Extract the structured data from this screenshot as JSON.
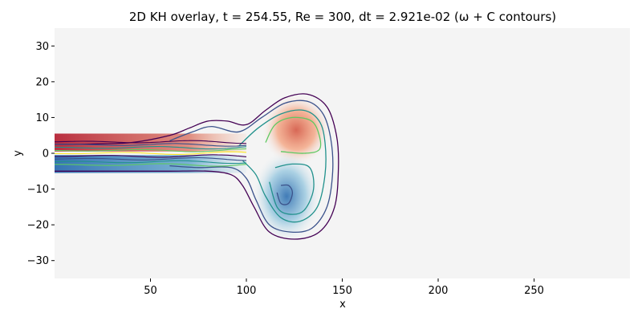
{
  "chart_data": {
    "type": "heatmap",
    "title": "2D KH overlay, t =  254.55, Re = 300, dt = 2.921e-02 (ω + C contours)",
    "xlabel": "x",
    "ylabel": "y",
    "xlim": [
      0,
      300
    ],
    "ylim": [
      -35,
      35
    ],
    "xticks": [
      50,
      100,
      150,
      200,
      250
    ],
    "yticks": [
      -30,
      -20,
      -10,
      0,
      10,
      20,
      30
    ],
    "xtick_labels": [
      "50",
      "100",
      "150",
      "200",
      "250"
    ],
    "ytick_labels": [
      "−30",
      "−20",
      "−10",
      "0",
      "10",
      "20",
      "30"
    ],
    "background_color": "#f4f4f4",
    "colormap": "RdBu_r",
    "vortices": [
      {
        "name": "upper",
        "sign": "positive",
        "cx": 126,
        "cy": 6.5,
        "color": "#d6604d"
      },
      {
        "name": "lower",
        "sign": "negative",
        "cx": 121,
        "cy": -12,
        "color": "#4393c3"
      }
    ],
    "shear_layer": {
      "x_start": 0,
      "x_end": 100,
      "upper_y": 4,
      "lower_y": -4
    },
    "contour_colors": [
      "#440154",
      "#3b528b",
      "#21918c",
      "#5ec962",
      "#fde725"
    ],
    "contours": [
      {
        "level": "outer",
        "color": "#440154",
        "points": [
          [
            0,
            2.5
          ],
          [
            20,
            2.6
          ],
          [
            40,
            3
          ],
          [
            60,
            5
          ],
          [
            70,
            7
          ],
          [
            80,
            9
          ],
          [
            90,
            9
          ],
          [
            100,
            8
          ],
          [
            110,
            12
          ],
          [
            120,
            15.5
          ],
          [
            132,
            16.5
          ],
          [
            142,
            13
          ],
          [
            147,
            5
          ],
          [
            148,
            -4
          ],
          [
            146,
            -15
          ],
          [
            138,
            -22
          ],
          [
            125,
            -24
          ],
          [
            112,
            -22
          ],
          [
            104,
            -15
          ],
          [
            98,
            -9
          ],
          [
            92,
            -6
          ],
          [
            80,
            -5
          ],
          [
            60,
            -5
          ],
          [
            40,
            -5
          ],
          [
            20,
            -5
          ],
          [
            0,
            -5
          ]
        ]
      },
      {
        "level": "mid",
        "color": "#3b528b",
        "points": [
          [
            60,
            3.5
          ],
          [
            72,
            6
          ],
          [
            82,
            7.5
          ],
          [
            96,
            6
          ],
          [
            108,
            10
          ],
          [
            120,
            14
          ],
          [
            132,
            14.5
          ],
          [
            140,
            11
          ],
          [
            144,
            4
          ],
          [
            145,
            -5
          ],
          [
            142,
            -15
          ],
          [
            134,
            -21
          ],
          [
            123,
            -22
          ],
          [
            112,
            -20
          ],
          [
            105,
            -13
          ],
          [
            100,
            -7
          ],
          [
            92,
            -4
          ],
          [
            75,
            -4
          ],
          [
            60,
            -3.5
          ]
        ]
      },
      {
        "level": "inner",
        "color": "#21918c",
        "points": [
          [
            96,
            2
          ],
          [
            106,
            7
          ],
          [
            118,
            11
          ],
          [
            130,
            12
          ],
          [
            138,
            9
          ],
          [
            141,
            3
          ],
          [
            141,
            -6
          ],
          [
            137,
            -15
          ],
          [
            128,
            -19
          ],
          [
            118,
            -18
          ],
          [
            110,
            -12
          ],
          [
            105,
            -6
          ],
          [
            98,
            -2
          ]
        ]
      },
      {
        "level": "core-upper",
        "color": "#5ec962",
        "points": [
          [
            110,
            3
          ],
          [
            115,
            8
          ],
          [
            124,
            10
          ],
          [
            134,
            9
          ],
          [
            138,
            5
          ],
          [
            138,
            1
          ],
          [
            130,
            0
          ],
          [
            118,
            0.5
          ]
        ]
      },
      {
        "level": "core-lower",
        "color": "#21918c",
        "points": [
          [
            112,
            -8
          ],
          [
            116,
            -15
          ],
          [
            122,
            -17
          ],
          [
            130,
            -16
          ],
          [
            135,
            -10
          ],
          [
            133,
            -4
          ],
          [
            124,
            -3
          ],
          [
            115,
            -4
          ]
        ]
      },
      {
        "level": "eye",
        "color": "#3b528b",
        "points": [
          [
            116,
            -11
          ],
          [
            118,
            -14
          ],
          [
            122,
            -14
          ],
          [
            124,
            -11
          ],
          [
            122,
            -9
          ],
          [
            118,
            -9
          ]
        ]
      }
    ]
  }
}
